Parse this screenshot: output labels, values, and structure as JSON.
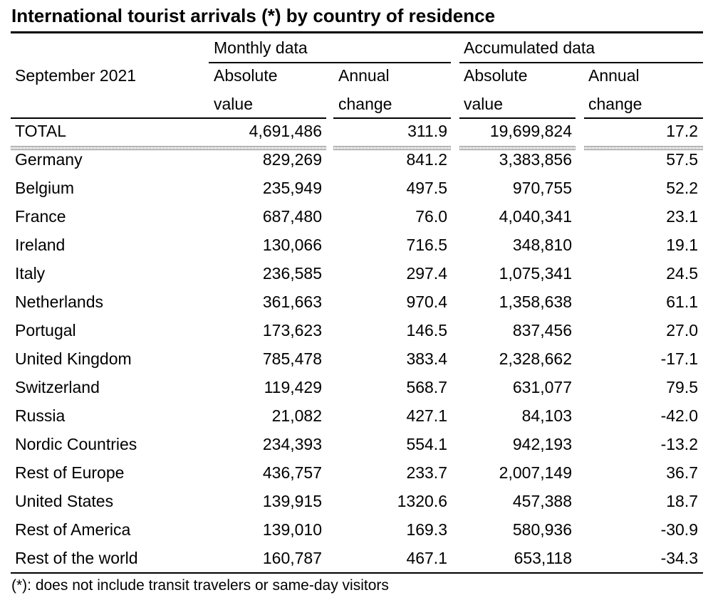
{
  "title": "International tourist arrivals (*) by country of residence",
  "header": {
    "period": "September 2021",
    "groups": [
      "Monthly data",
      "Accumulated data"
    ],
    "columns": [
      [
        "Absolute",
        "value"
      ],
      [
        "Annual",
        "change"
      ],
      [
        "Absolute",
        "value"
      ],
      [
        "Annual",
        "change"
      ]
    ]
  },
  "total": [
    "TOTAL",
    "4,691,486",
    "311.9",
    "19,699,824",
    "17.2"
  ],
  "rows": [
    [
      "Germany",
      "829,269",
      "841.2",
      "3,383,856",
      "57.5"
    ],
    [
      "Belgium",
      "235,949",
      "497.5",
      "970,755",
      "52.2"
    ],
    [
      "France",
      "687,480",
      "76.0",
      "4,040,341",
      "23.1"
    ],
    [
      "Ireland",
      "130,066",
      "716.5",
      "348,810",
      "19.1"
    ],
    [
      "Italy",
      "236,585",
      "297.4",
      "1,075,341",
      "24.5"
    ],
    [
      "Netherlands",
      "361,663",
      "970.4",
      "1,358,638",
      "61.1"
    ],
    [
      "Portugal",
      "173,623",
      "146.5",
      "837,456",
      "27.0"
    ],
    [
      "United Kingdom",
      "785,478",
      "383.4",
      "2,328,662",
      "-17.1"
    ],
    [
      "Switzerland",
      "119,429",
      "568.7",
      "631,077",
      "79.5"
    ],
    [
      "Russia",
      "21,082",
      "427.1",
      "84,103",
      "-42.0"
    ],
    [
      "Nordic Countries",
      "234,393",
      "554.1",
      "942,193",
      "-13.2"
    ],
    [
      "Rest of Europe",
      "436,757",
      "233.7",
      "2,007,149",
      "36.7"
    ],
    [
      "United States",
      "139,915",
      "1320.6",
      "457,388",
      "18.7"
    ],
    [
      "Rest of America",
      "139,010",
      "169.3",
      "580,936",
      "-30.9"
    ],
    [
      "Rest of the world",
      "160,787",
      "467.1",
      "653,118",
      "-34.3"
    ]
  ],
  "footnote": "(*): does not include transit travelers or same-day visitors"
}
